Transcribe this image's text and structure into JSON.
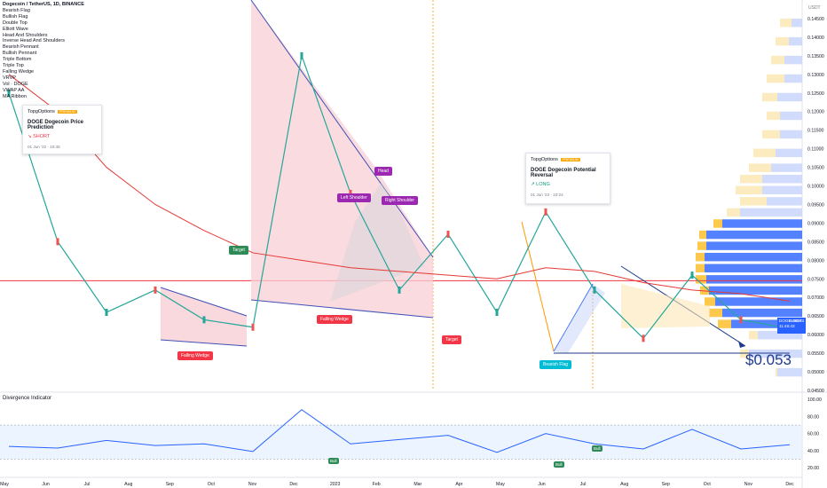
{
  "header": {
    "title": "Dogecoin / TetherUS, 1D, BINANCE",
    "indicators": [
      "Bearish Flag",
      "Bullish Flag",
      "Double Top",
      "Elliott Wave",
      "Head And Shoulders",
      "Inverse Head And Shoulders",
      "Bearish Pennant",
      "Bullish Pennant",
      "Triple Bottom",
      "Triple Top",
      "Falling Wedge",
      "VRVP",
      "Vol · DOGE",
      "VWAP AA",
      "MA Ribbon"
    ]
  },
  "cards": [
    {
      "brand": "TopgOptions",
      "badge": "PREMIUM",
      "title": "DOGE Dogecoin Price Prediction",
      "side": "↘ SHORT",
      "date": "01 Jun '22 · 10:45"
    },
    {
      "brand": "TopgOptions",
      "badge": "PREMIUM",
      "title": "DOGE Dogecoin Potential Reversal",
      "side": "↗ LONG",
      "date": "01 Jun '23 · 10:24"
    }
  ],
  "labels": {
    "target1": "Target",
    "target2": "Target",
    "falling_wedge1": "Falling Wedge",
    "falling_wedge2": "Falling Wedge",
    "head": "Head",
    "left_shoulder": "Left Shoulder",
    "right_shoulder": "Right Shoulder",
    "bearish_flag": "Bearish Flag",
    "bull1": "Bull",
    "bull2": "Bull",
    "bull3": "Bull",
    "target_price": "$0.053"
  },
  "price_axis": {
    "currency": "USDT",
    "ticks": [
      "0.14500",
      "0.14000",
      "0.13500",
      "0.13000",
      "0.12500",
      "0.12000",
      "0.11500",
      "0.11000",
      "0.10500",
      "0.10000",
      "0.09500",
      "0.09000",
      "0.08500",
      "0.08000",
      "0.07500",
      "0.07000",
      "0.06500",
      "0.06000",
      "0.05500",
      "0.05000",
      "0.04500"
    ],
    "current_symbol": "DOGEUSDT",
    "current_price": "0.06163",
    "countdown": "11:46:43"
  },
  "rsi": {
    "title": "Divergence Indicator",
    "ticks": [
      "100.00",
      "80.00",
      "60.00",
      "40.00",
      "20.00"
    ]
  },
  "time_axis": [
    "May",
    "Jun",
    "Jul",
    "Aug",
    "Sep",
    "Oct",
    "Nov",
    "Dec",
    "2023",
    "Feb",
    "Mar",
    "Apr",
    "May",
    "Jun",
    "Jul",
    "Aug",
    "Sep",
    "Oct",
    "Nov",
    "Dec"
  ],
  "chart_data": {
    "type": "line",
    "title": "Dogecoin / TetherUS, 1D, BINANCE",
    "x": [
      "May",
      "Jun",
      "Jul",
      "Aug",
      "Sep",
      "Oct",
      "Nov",
      "Dec",
      "2023",
      "Feb",
      "Mar",
      "Apr",
      "May",
      "Jun",
      "Jul",
      "Aug",
      "Sep"
    ],
    "series": [
      {
        "name": "DOGEUSDT",
        "values": [
          0.125,
          0.085,
          0.066,
          0.072,
          0.064,
          0.062,
          0.135,
          0.098,
          0.072,
          0.087,
          0.066,
          0.093,
          0.072,
          0.059,
          0.076,
          0.064,
          0.0616
        ]
      }
    ],
    "ylim": [
      0.045,
      0.15
    ],
    "horizontal_line": 0.0745,
    "annotation_target": 0.053,
    "rsi": [
      45,
      43,
      52,
      46,
      48,
      39,
      88,
      48,
      53,
      58,
      38,
      60,
      48,
      42,
      65,
      42,
      47
    ]
  }
}
